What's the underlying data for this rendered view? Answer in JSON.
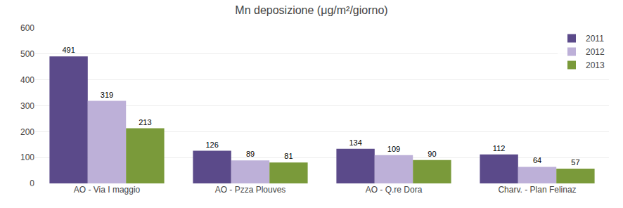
{
  "chart_data": {
    "type": "bar",
    "title": "Mn deposizione (μg/m²/giorno)",
    "categories": [
      "AO - Via I maggio",
      "AO - Pzza Plouves",
      "AO - Q.re Dora",
      "Charv. - Plan Felinaz"
    ],
    "series": [
      {
        "name": "2011",
        "color": "#5B4A8A",
        "values": [
          491,
          126,
          134,
          112
        ]
      },
      {
        "name": "2012",
        "color": "#BDB0D8",
        "values": [
          319,
          89,
          109,
          64
        ]
      },
      {
        "name": "2013",
        "color": "#7A9A3A",
        "values": [
          213,
          81,
          90,
          57
        ]
      }
    ],
    "ylim": [
      0,
      600
    ],
    "yticks": [
      0,
      100,
      200,
      300,
      400,
      500,
      600
    ],
    "grid": true,
    "legend": "upper right",
    "data_labels": true
  }
}
